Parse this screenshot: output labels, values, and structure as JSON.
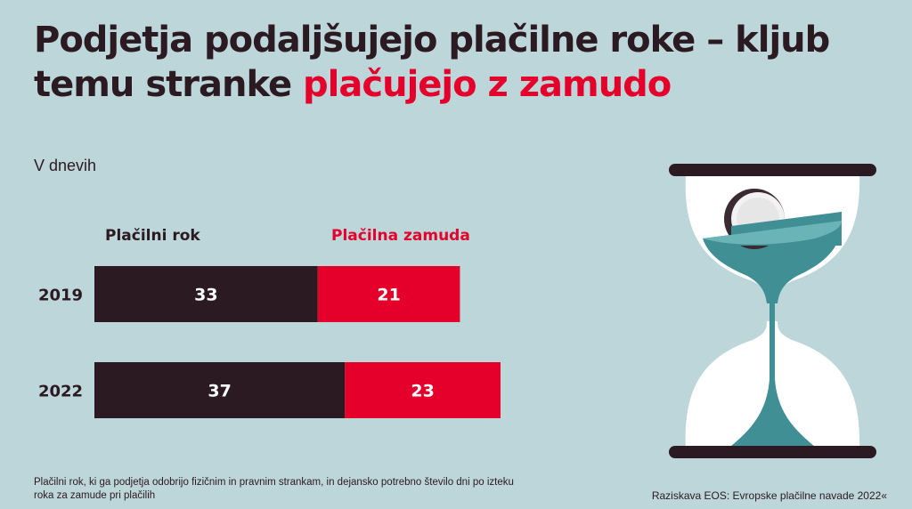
{
  "header": {
    "title_part1": "Podjetja podaljšujejo plačilne roke – kljub temu stranke ",
    "title_highlight": "plačujejo z zamudo"
  },
  "unit_label": "V dnevih",
  "chart_data": {
    "type": "bar",
    "stacked": true,
    "orientation": "horizontal",
    "categories": [
      "2019",
      "2022"
    ],
    "series": [
      {
        "name": "Plačilni rok",
        "values": [
          33,
          37
        ],
        "color": "#2c1a22"
      },
      {
        "name": "Plačilna zamuda",
        "values": [
          21,
          23
        ],
        "color": "#e4002b"
      }
    ],
    "title": "Podjetja podaljšujejo plačilne roke – kljub temu stranke plačujejo z zamudo",
    "xlabel": "",
    "ylabel": "V dnevih",
    "legend": "top",
    "grid": false
  },
  "colors": {
    "background": "#bcd6d9",
    "dark": "#2c1a22",
    "accent": "#e4002b",
    "teal": "#3f8f94"
  },
  "illustration": "hourglass-coin-icon",
  "footnote": "Plačilni rok, ki ga podjetja odobrijo fizičnim in pravnim strankam, in dejansko potrebno število dni po izteku roka za zamude pri plačilih",
  "source": "Raziskava EOS: Evropske plačilne navade 2022«"
}
